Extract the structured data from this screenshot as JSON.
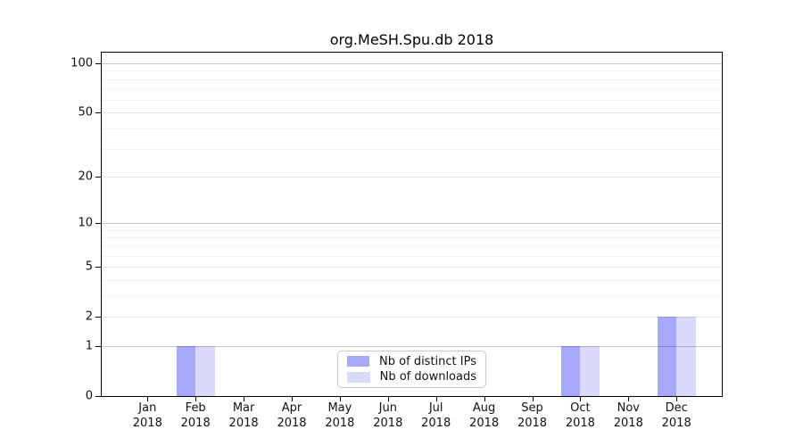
{
  "chart_data": {
    "type": "bar",
    "title": "org.MeSH.Spu.db 2018",
    "categories": [
      "Jan",
      "Feb",
      "Mar",
      "Apr",
      "May",
      "Jun",
      "Jul",
      "Aug",
      "Sep",
      "Oct",
      "Nov",
      "Dec"
    ],
    "x_year": "2018",
    "series": [
      {
        "name": "Nb of distinct IPs",
        "color": "#a8a8fa",
        "values": [
          0,
          1,
          0,
          0,
          0,
          0,
          0,
          0,
          0,
          1,
          0,
          2
        ]
      },
      {
        "name": "Nb of downloads",
        "color": "#d9d9fa",
        "values": [
          0,
          1,
          0,
          0,
          0,
          0,
          0,
          0,
          0,
          1,
          0,
          2
        ]
      }
    ],
    "xlabel": "",
    "ylabel": "",
    "y_scale": "log1p",
    "ylim": [
      0,
      100
    ],
    "y_ticks": [
      0,
      1,
      2,
      5,
      10,
      20,
      50,
      100
    ],
    "grid": "on",
    "grid_major_decade": [
      1,
      10,
      100
    ],
    "grid_major": [
      2,
      5,
      20,
      50
    ],
    "grid_minor": [
      3,
      4,
      6,
      7,
      8,
      9,
      30,
      40,
      60,
      70,
      80,
      90
    ],
    "legend_position": "bottom-center"
  },
  "colors": {
    "background": "#ffffff",
    "axis": "#000000",
    "text": "#111111",
    "grid_decade": "rgba(0,0,0,0.22)",
    "grid_major": "rgba(0,0,0,0.11)",
    "grid_minor": "rgba(0,0,0,0.05)",
    "legend_border": "#c9c9c9"
  }
}
